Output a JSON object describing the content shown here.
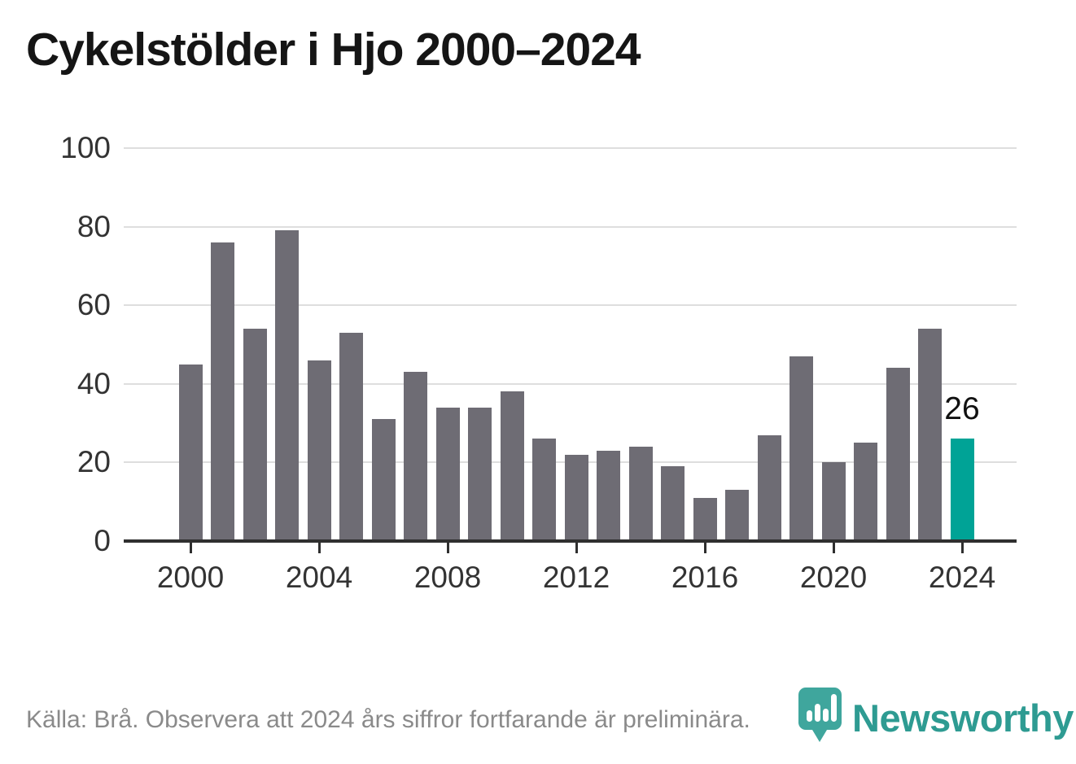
{
  "title": "Cykelstölder i Hjo 2000–2024",
  "chart_data": {
    "type": "bar",
    "title": "Cykelstölder i Hjo 2000–2024",
    "categories": [
      2000,
      2001,
      2002,
      2003,
      2004,
      2005,
      2006,
      2007,
      2008,
      2009,
      2010,
      2011,
      2012,
      2013,
      2014,
      2015,
      2016,
      2017,
      2018,
      2019,
      2020,
      2021,
      2022,
      2023,
      2024
    ],
    "values": [
      45,
      76,
      54,
      79,
      46,
      53,
      31,
      43,
      34,
      34,
      38,
      26,
      22,
      23,
      24,
      19,
      11,
      13,
      27,
      47,
      20,
      25,
      44,
      54,
      26
    ],
    "xlabel": "",
    "ylabel": "",
    "ylim": [
      0,
      100
    ],
    "yticks": [
      0,
      20,
      40,
      60,
      80,
      100
    ],
    "xticks": [
      2000,
      2004,
      2008,
      2012,
      2016,
      2020,
      2024
    ],
    "grid": true,
    "legend": false,
    "bar_color": "#6e6c74",
    "highlight_index": 24,
    "highlight_color": "#00a396",
    "highlight_label": "26",
    "annotation_value": 26
  },
  "footer": {
    "source_text": "Källa: Brå. Observera att 2024 års siffror fortfarande är preliminära."
  },
  "logo": {
    "brand_name": "Newsworthy",
    "icon": "newsworthy-pin-barchart-icon",
    "pin_color": "#3fa69d",
    "wordmark_color": "#2e9b92"
  },
  "colors": {
    "background": "#ffffff",
    "gridline": "#dedede",
    "axis": "#2f2f2f",
    "axis_text": "#333333",
    "title_text": "#151515",
    "footer_text": "#8a8a8a"
  }
}
